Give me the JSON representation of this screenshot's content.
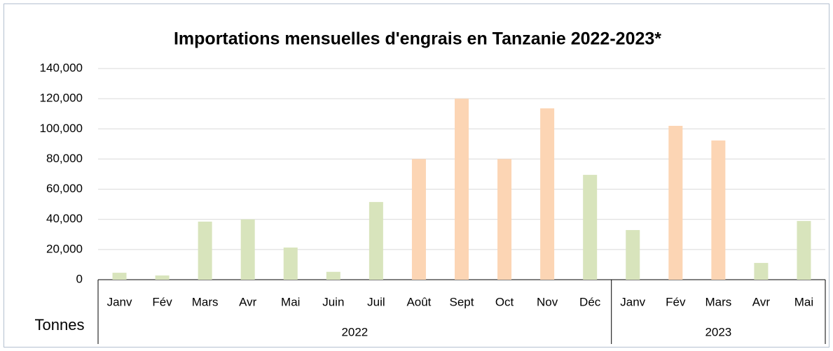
{
  "chart_data": {
    "type": "bar",
    "title": "Importations mensuelles d'engrais en Tanzanie 2022-2023*",
    "y_label": "Tonnes",
    "groups": [
      {
        "label": "2022",
        "categories": [
          "Janv",
          "Fév",
          "Mars",
          "Avr",
          "Mai",
          "Juin",
          "Juil",
          "Août",
          "Sept",
          "Oct",
          "Nov",
          "Déc"
        ],
        "values": [
          4600,
          2800,
          38500,
          40000,
          21300,
          5200,
          51500,
          80000,
          120000,
          80000,
          113600,
          69500
        ],
        "colors": [
          "#d8e4bc",
          "#d8e4bc",
          "#d8e4bc",
          "#d8e4bc",
          "#d8e4bc",
          "#d8e4bc",
          "#d8e4bc",
          "#fcd5b4",
          "#fcd5b4",
          "#fcd5b4",
          "#fcd5b4",
          "#d8e4bc"
        ]
      },
      {
        "label": "2023",
        "categories": [
          "Janv",
          "Fév",
          "Mars",
          "Avr",
          "Mai"
        ],
        "values": [
          32900,
          102000,
          92300,
          11100,
          38900
        ],
        "colors": [
          "#d8e4bc",
          "#fcd5b4",
          "#fcd5b4",
          "#d8e4bc",
          "#d8e4bc"
        ]
      }
    ],
    "ylim": [
      0,
      140000
    ],
    "yticks": [
      0,
      {
        "value": 20000,
        "label": "20,000"
      },
      {
        "value": 40000,
        "label": "40,000"
      },
      {
        "value": 60000,
        "label": "60,000"
      },
      {
        "value": 80000,
        "label": "80,000"
      },
      {
        "value": 100000,
        "label": "100,000"
      },
      {
        "value": 120000,
        "label": "120,000"
      },
      {
        "value": 140000,
        "label": "140,000"
      }
    ],
    "grid": true
  }
}
